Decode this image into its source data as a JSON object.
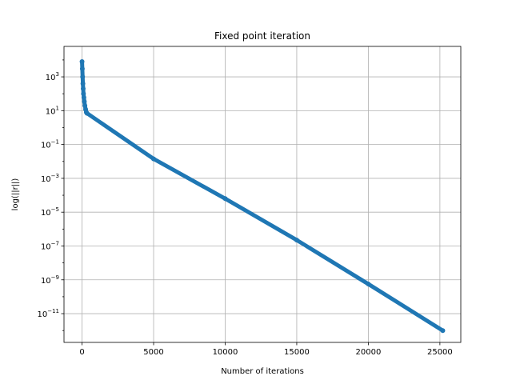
{
  "chart_data": {
    "type": "scatter",
    "title": "Fixed point iteration",
    "xlabel": "Number of iterations",
    "ylabel": "log(||r||)",
    "xlim": [
      -1260,
      26460
    ],
    "ylim_log10": [
      -12.7,
      4.8
    ],
    "yscale": "log",
    "grid": true,
    "marker_color": "#1f77b4",
    "xticks": [
      0,
      5000,
      10000,
      15000,
      20000,
      25000
    ],
    "xtick_labels": [
      "0",
      "5000",
      "10000",
      "15000",
      "20000",
      "25000"
    ],
    "yticks_exp": [
      3,
      1,
      -1,
      -3,
      -5,
      -7,
      -9,
      -11
    ],
    "ytick_labels": [
      {
        "base": "10",
        "exp": "3"
      },
      {
        "base": "10",
        "exp": "1"
      },
      {
        "base": "10",
        "exp": "−1"
      },
      {
        "base": "10",
        "exp": "−3"
      },
      {
        "base": "10",
        "exp": "−5"
      },
      {
        "base": "10",
        "exp": "−7"
      },
      {
        "base": "10",
        "exp": "−9"
      },
      {
        "base": "10",
        "exp": "−11"
      }
    ],
    "series": [
      {
        "points": [
          {
            "x": 0,
            "y": 8000
          },
          {
            "x": 20,
            "y": 3000
          },
          {
            "x": 40,
            "y": 1000
          },
          {
            "x": 60,
            "y": 400
          },
          {
            "x": 80,
            "y": 200
          },
          {
            "x": 100,
            "y": 100
          },
          {
            "x": 130,
            "y": 60
          },
          {
            "x": 160,
            "y": 35
          },
          {
            "x": 200,
            "y": 20
          },
          {
            "x": 250,
            "y": 12
          },
          {
            "x": 300,
            "y": 8
          },
          {
            "x": 350,
            "y": 7
          },
          {
            "x": 5000,
            "y": 0.0141
          },
          {
            "x": 10000,
            "y": 6.31e-05
          },
          {
            "x": 15000,
            "y": 2.24e-07
          },
          {
            "x": 20000,
            "y": 5.62e-10
          },
          {
            "x": 25200,
            "y": 1e-12
          }
        ]
      }
    ]
  }
}
